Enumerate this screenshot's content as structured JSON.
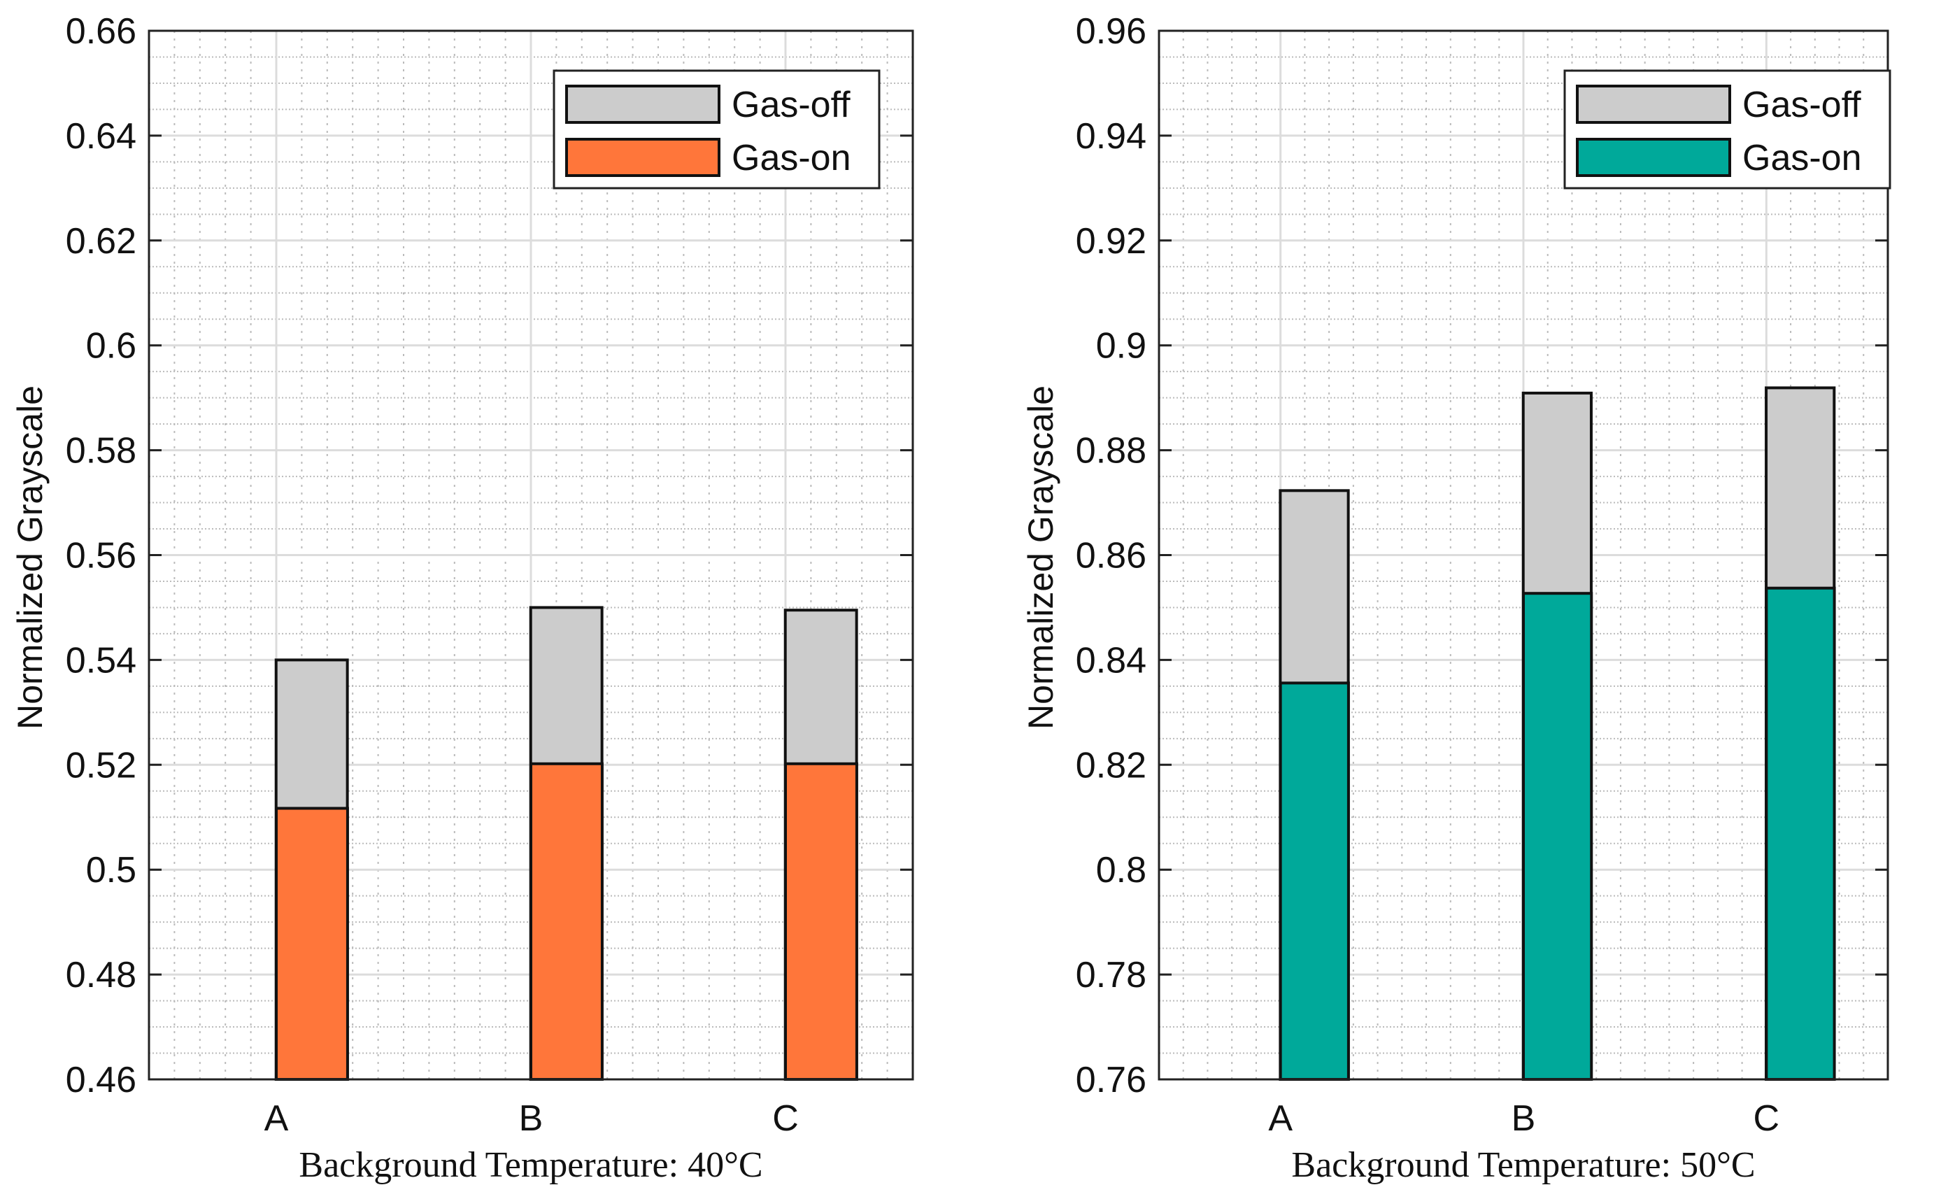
{
  "chart_data": [
    {
      "type": "bar",
      "categories": [
        "A",
        "B",
        "C"
      ],
      "series": [
        {
          "name": "Gas-off",
          "values": [
            0.54,
            0.55,
            0.5495
          ],
          "color": "#CCCCCC"
        },
        {
          "name": "Gas-on",
          "values": [
            0.5117,
            0.5202,
            0.5202
          ],
          "color": "#FF763A"
        }
      ],
      "xlabel": "Background Temperature: 40°C",
      "ylabel": "Normalized Grayscale",
      "ylim": [
        0.46,
        0.66
      ],
      "yticks": [
        "0.46",
        "0.48",
        "0.5",
        "0.52",
        "0.54",
        "0.56",
        "0.58",
        "0.6",
        "0.62",
        "0.64",
        "0.66"
      ],
      "grid": true,
      "legend": "top-right"
    },
    {
      "type": "bar",
      "categories": [
        "A",
        "B",
        "C"
      ],
      "series": [
        {
          "name": "Gas-off",
          "values": [
            0.8723,
            0.8909,
            0.8919
          ],
          "color": "#CCCCCC"
        },
        {
          "name": "Gas-on",
          "values": [
            0.8356,
            0.8527,
            0.8537
          ],
          "color": "#00A99A"
        }
      ],
      "xlabel": "Background Temperature: 50°C",
      "ylabel": "Normalized Grayscale",
      "ylim": [
        0.76,
        0.96
      ],
      "yticks": [
        "0.76",
        "0.78",
        "0.8",
        "0.82",
        "0.84",
        "0.86",
        "0.88",
        "0.9",
        "0.92",
        "0.94",
        "0.96"
      ],
      "grid": true,
      "legend": "top-right"
    }
  ]
}
